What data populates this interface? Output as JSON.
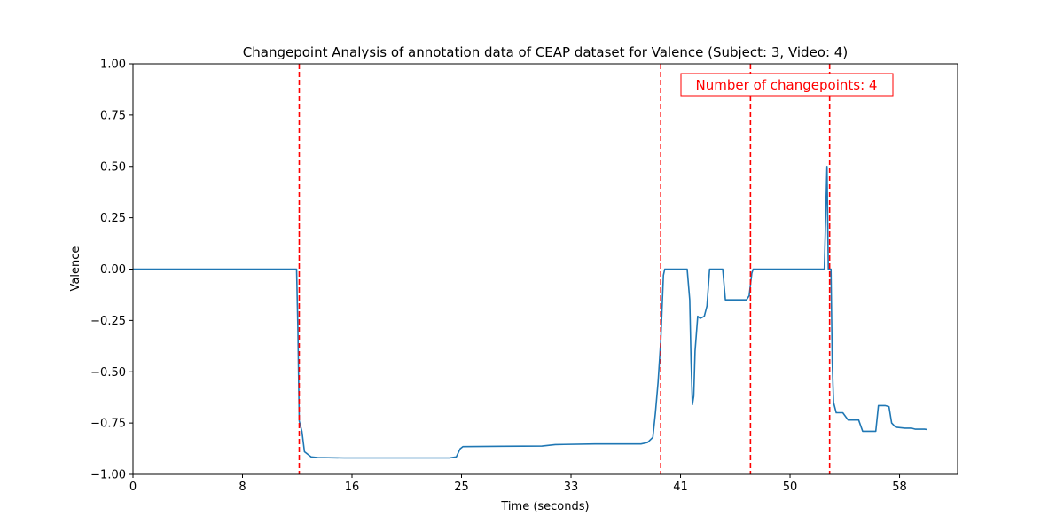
{
  "chart_data": {
    "type": "line",
    "title": "Changepoint Analysis of annotation data of CEAP dataset for Valence (Subject: 3, Video: 4)",
    "xlabel": "Time (seconds)",
    "ylabel": "Valence",
    "xlim": [
      0,
      62.5
    ],
    "ylim": [
      -1.0,
      1.0
    ],
    "x_ticks": [
      0,
      8.3,
      16.6,
      24.9,
      33.2,
      41.5,
      49.8,
      58.1
    ],
    "x_tick_labels": [
      "0",
      "8",
      "16",
      "25",
      "33",
      "41",
      "50",
      "58"
    ],
    "y_ticks": [
      -1.0,
      -0.75,
      -0.5,
      -0.25,
      0.0,
      0.25,
      0.5,
      0.75,
      1.0
    ],
    "y_tick_labels": [
      "−1.00",
      "−0.75",
      "−0.50",
      "−0.25",
      "0.00",
      "0.25",
      "0.50",
      "0.75",
      "1.00"
    ],
    "grid": false,
    "annotation": {
      "text": "Number of changepoints: 4",
      "color": "#ff0000"
    },
    "changepoints": [
      12.6,
      40.0,
      46.8,
      52.8
    ],
    "changepoint_color": "#ff0000",
    "series": [
      {
        "color": "#1f77b4",
        "points": [
          [
            0,
            0
          ],
          [
            12.4,
            0
          ],
          [
            12.5,
            -0.3
          ],
          [
            12.6,
            -0.74
          ],
          [
            12.8,
            -0.79
          ],
          [
            13.0,
            -0.89
          ],
          [
            13.5,
            -0.915
          ],
          [
            14.0,
            -0.918
          ],
          [
            16.0,
            -0.92
          ],
          [
            20.0,
            -0.92
          ],
          [
            24.0,
            -0.92
          ],
          [
            24.5,
            -0.915
          ],
          [
            24.8,
            -0.875
          ],
          [
            25.0,
            -0.865
          ],
          [
            28.0,
            -0.863
          ],
          [
            31.0,
            -0.862
          ],
          [
            32.0,
            -0.855
          ],
          [
            35.0,
            -0.852
          ],
          [
            38.5,
            -0.852
          ],
          [
            39.0,
            -0.845
          ],
          [
            39.4,
            -0.82
          ],
          [
            39.6,
            -0.7
          ],
          [
            39.8,
            -0.55
          ],
          [
            40.0,
            -0.35
          ],
          [
            40.2,
            -0.03
          ],
          [
            40.3,
            0
          ],
          [
            42.0,
            0
          ],
          [
            42.2,
            -0.15
          ],
          [
            42.3,
            -0.45
          ],
          [
            42.4,
            -0.66
          ],
          [
            42.5,
            -0.62
          ],
          [
            42.6,
            -0.4
          ],
          [
            42.8,
            -0.23
          ],
          [
            43.0,
            -0.24
          ],
          [
            43.3,
            -0.23
          ],
          [
            43.5,
            -0.18
          ],
          [
            43.7,
            0
          ],
          [
            44.7,
            0
          ],
          [
            44.9,
            -0.15
          ],
          [
            46.5,
            -0.15
          ],
          [
            46.7,
            -0.13
          ],
          [
            46.9,
            -0.02
          ],
          [
            47.0,
            0
          ],
          [
            52.4,
            0
          ],
          [
            52.6,
            0.5
          ],
          [
            52.7,
            0.0
          ],
          [
            52.9,
            0.0
          ],
          [
            53.0,
            -0.45
          ],
          [
            53.1,
            -0.65
          ],
          [
            53.3,
            -0.7
          ],
          [
            53.8,
            -0.7
          ],
          [
            54.2,
            -0.735
          ],
          [
            55.0,
            -0.735
          ],
          [
            55.3,
            -0.79
          ],
          [
            56.3,
            -0.79
          ],
          [
            56.5,
            -0.665
          ],
          [
            57.0,
            -0.665
          ],
          [
            57.3,
            -0.67
          ],
          [
            57.5,
            -0.75
          ],
          [
            57.8,
            -0.77
          ],
          [
            58.5,
            -0.775
          ],
          [
            59.0,
            -0.775
          ],
          [
            59.3,
            -0.78
          ],
          [
            60.0,
            -0.78
          ],
          [
            60.2,
            -0.782
          ]
        ]
      }
    ]
  }
}
